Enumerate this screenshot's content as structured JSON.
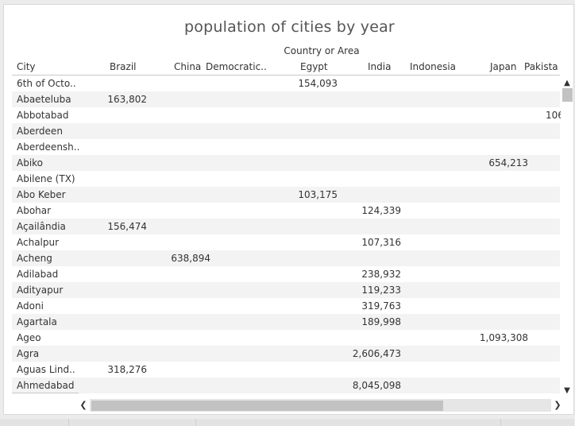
{
  "view": {
    "title": "population of cities by year",
    "group_header": "Country or Area"
  },
  "table": {
    "columns": [
      "City",
      "Brazil",
      "China",
      "Democratic..",
      "Egypt",
      "India",
      "Indonesia",
      "Japan",
      "Pakista"
    ],
    "rows": [
      {
        "city": "6th of Octo..",
        "egypt": "154,093"
      },
      {
        "city": "Abaeteluba",
        "brazil": "163,802"
      },
      {
        "city": "Abbotabad",
        "pakistan": "106"
      },
      {
        "city": "Aberdeen"
      },
      {
        "city": "Aberdeensh.."
      },
      {
        "city": "Abiko",
        "japan": "654,213"
      },
      {
        "city": "Abilene (TX)"
      },
      {
        "city": "Abo Keber",
        "egypt": "103,175"
      },
      {
        "city": "Abohar",
        "india": "124,339"
      },
      {
        "city": "Açailândia",
        "brazil": "156,474"
      },
      {
        "city": "Achalpur",
        "india": "107,316"
      },
      {
        "city": "Acheng",
        "china": "638,894"
      },
      {
        "city": "Adilabad",
        "india": "238,932"
      },
      {
        "city": "Adityapur",
        "india": "119,233"
      },
      {
        "city": "Adoni",
        "india": "319,763"
      },
      {
        "city": "Agartala",
        "india": "189,998"
      },
      {
        "city": "Ageo",
        "japan": "1,093,308"
      },
      {
        "city": "Agra",
        "india": "2,606,473"
      },
      {
        "city": "Aguas Lind..",
        "brazil": "318,276"
      },
      {
        "city": "Ahmedabad",
        "india": "8,045,098"
      }
    ]
  },
  "scrollbars": {
    "up_icon": "chevron-up-icon",
    "down_icon": "chevron-down-icon",
    "left_icon": "chevron-left-icon",
    "right_icon": "chevron-right-icon"
  },
  "colors": {
    "text": "#333333",
    "title": "#555555",
    "band": "#f3f3f3",
    "scroll_thumb": "#c2c2c2"
  }
}
